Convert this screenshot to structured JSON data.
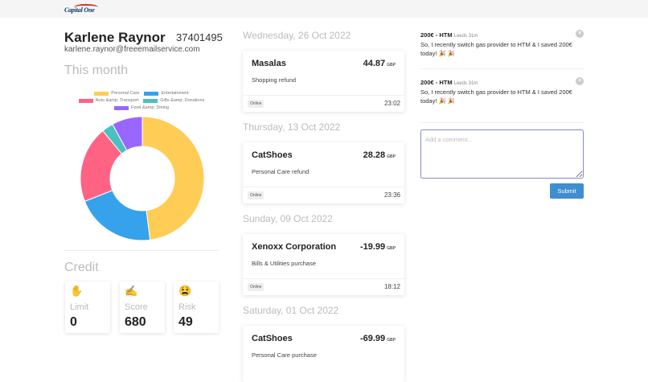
{
  "header": {
    "logo_text": "Capital One"
  },
  "profile": {
    "name": "Karlene Raynor",
    "account_number": "37401495",
    "email": "karlene.raynor@freeemailservice.com"
  },
  "this_month": {
    "title": "This month",
    "legend": [
      {
        "label": "Personal Care",
        "color": "#ffcd56"
      },
      {
        "label": "Entertainment",
        "color": "#36a2eb"
      },
      {
        "label": "Auto &amp; Transport",
        "color": "#ff6384"
      },
      {
        "label": "Gifts &amp; Donations",
        "color": "#4bc0c0"
      },
      {
        "label": "Food &amp; Dining",
        "color": "#9966ff"
      }
    ]
  },
  "chart_data": {
    "type": "pie",
    "title": "This month",
    "categories": [
      "Personal Care",
      "Entertainment",
      "Auto &amp; Transport",
      "Gifts &amp; Donations",
      "Food &amp; Dining"
    ],
    "values": [
      48,
      21,
      20,
      3,
      8
    ],
    "colors": [
      "#ffcd56",
      "#36a2eb",
      "#ff6384",
      "#4bc0c0",
      "#9966ff"
    ],
    "donut": true,
    "legend_position": "top"
  },
  "credit": {
    "title": "Credit",
    "cards": [
      {
        "emoji": "✋",
        "label": "Limit",
        "value": "0"
      },
      {
        "emoji": "✍️",
        "label": "Score",
        "value": "680"
      },
      {
        "emoji": "😫",
        "label": "Risk",
        "value": "49"
      }
    ]
  },
  "transactions": [
    {
      "date": "Wednesday, 26 Oct 2022",
      "merchant": "Masalas",
      "amount": "44.87",
      "currency": "GBP",
      "description": "Shopping refund",
      "channel": "Online",
      "time": "23:02"
    },
    {
      "date": "Thursday, 13 Oct 2022",
      "merchant": "CatShoes",
      "amount": "28.28",
      "currency": "GBP",
      "description": "Personal Care refund",
      "channel": "Online",
      "time": "23:36"
    },
    {
      "date": "Sunday, 09 Oct 2022",
      "merchant": "Xenoxx Corporation",
      "amount": "-19.99",
      "currency": "GBP",
      "description": "Bills & Utilities purchase",
      "channel": "Online",
      "time": "18:12"
    },
    {
      "date": "Saturday, 01 Oct 2022",
      "merchant": "CatShoes",
      "amount": "-69.99",
      "currency": "GBP",
      "description": "Personal Care purchase",
      "channel": "",
      "time": ""
    }
  ],
  "comments": [
    {
      "title": "200€ - HTM",
      "meta": "Leeds 31m",
      "body": "So, I recently switch gas provider to HTM & I saved 200€ today! 🎉 🎉",
      "close_icon": "×"
    },
    {
      "title": "200€ - HTM",
      "meta": "Leeds 31m",
      "body": "So, I recently switch gas provider to HTM & I saved 200€ today! 🎉 🎉",
      "close_icon": "×"
    }
  ],
  "comment_form": {
    "placeholder": "Add a comment...",
    "value": "",
    "submit_label": "Submit"
  }
}
